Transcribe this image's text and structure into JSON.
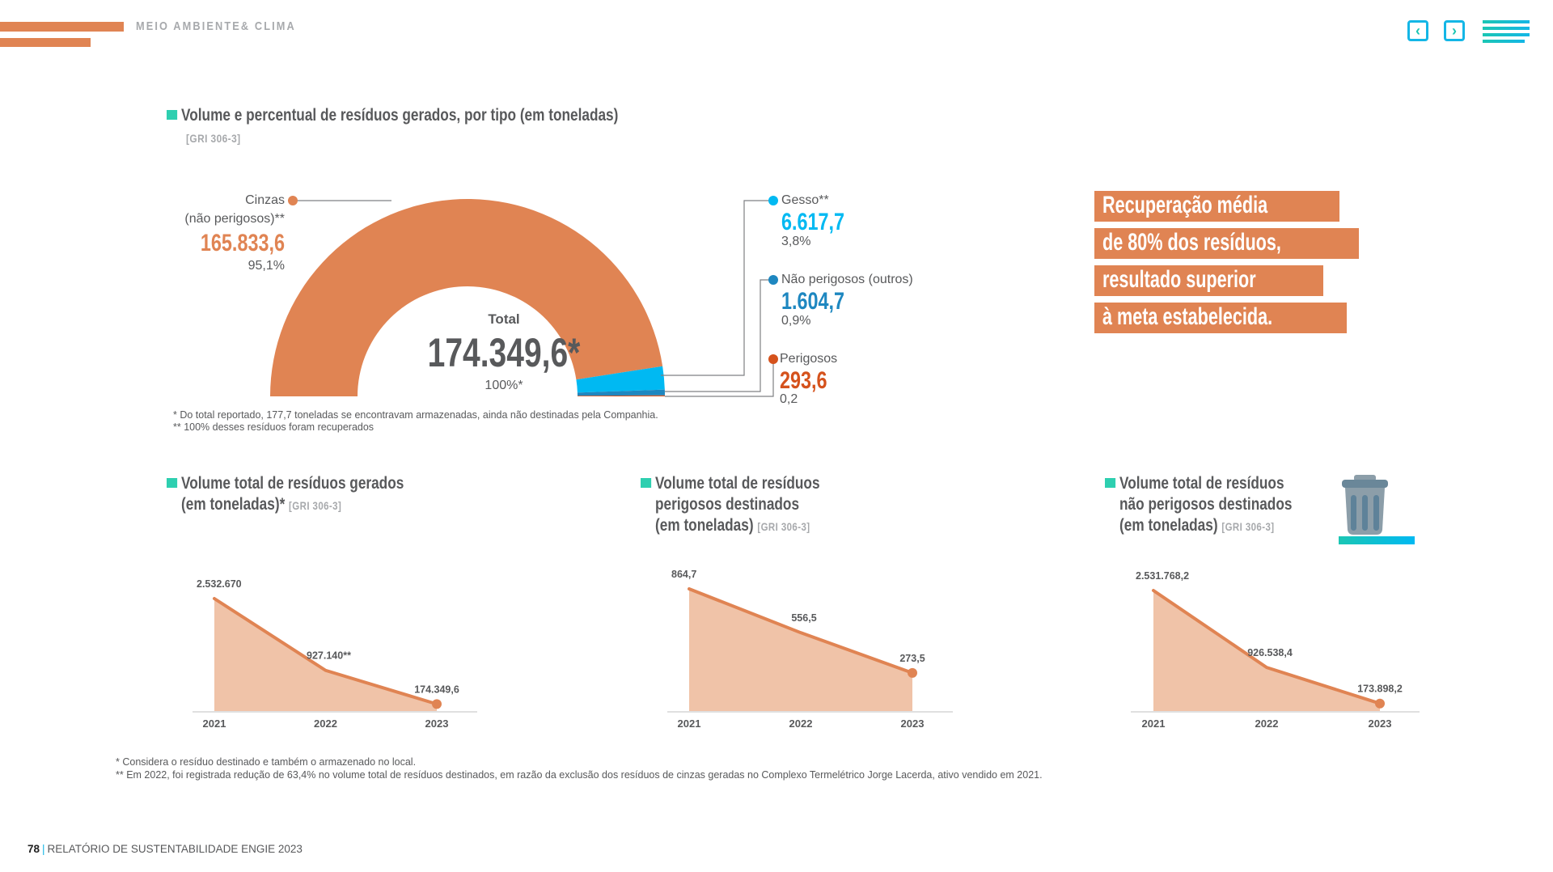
{
  "header": {
    "section_title": "MEIO AMBIENTE& CLIMA",
    "nav": {
      "prev_icon": "chevron-left-icon",
      "next_icon": "chevron-right-icon",
      "menu_icon": "menu-icon"
    }
  },
  "colors": {
    "orange": "#e08453",
    "orange_fill": "#f0c3a8",
    "sky_blue": "#00b9f2",
    "blue": "#1e87c0",
    "red_orange": "#d5521c",
    "teal": "#2ecfb0",
    "gray_text": "#58595b"
  },
  "donut": {
    "title": "Volume e percentual de resíduos gerados, por tipo (em toneladas)",
    "gri": "[GRI  306-3]",
    "center_label": "Total",
    "center_value": "174.349,6*",
    "center_pct": "100%*",
    "notes": [
      "* Do total reportado, 177,7 toneladas se encontravam armazenadas, ainda não destinadas pela Companhia.",
      "** 100% desses resíduos foram recuperados"
    ],
    "labels": {
      "cinzas_line1": "Cinzas",
      "cinzas_line2": "(não perigosos)**",
      "cinzas_value": "165.833,6",
      "cinzas_pct": "95,1%",
      "gesso_name": "Gesso**",
      "gesso_value": "6.617,7",
      "gesso_pct": "3,8%",
      "np_name": "Não perigosos (outros)",
      "np_value": "1.604,7",
      "np_pct": "0,9%",
      "per_name": "Perigosos",
      "per_value": "293,6",
      "per_pct": "0,2"
    }
  },
  "callout": {
    "lines": [
      "Recuperação média",
      "de 80% dos resíduos,",
      "resultado superior",
      "à meta estabelecida."
    ]
  },
  "charts_titles": {
    "c1": {
      "line1": "Volume total de resíduos gerados",
      "line2": "(em toneladas)*",
      "gri": "[GRI  306-3]"
    },
    "c2": {
      "line1": "Volume total de resíduos",
      "line2": "perigosos destinados",
      "line3": "(em toneladas)",
      "gri": "[GRI  306-3]"
    },
    "c3": {
      "line1": "Volume total de resíduos",
      "line2": "não perigosos destinados",
      "line3": "(em toneladas)",
      "gri": "[GRI  306-3]"
    }
  },
  "chart_data": [
    {
      "type": "pie",
      "subtype": "half-donut",
      "title": "Volume e percentual de resíduos gerados, por tipo (em toneladas)",
      "categories": [
        "Cinzas (não perigosos)",
        "Gesso",
        "Não perigosos (outros)",
        "Perigosos"
      ],
      "values": [
        165833.6,
        6617.7,
        1604.7,
        293.6
      ],
      "percentages": [
        95.1,
        3.8,
        0.9,
        0.2
      ],
      "colors": [
        "#e08453",
        "#00b9f2",
        "#1e87c0",
        "#d5521c"
      ],
      "total": 174349.6
    },
    {
      "type": "area",
      "title": "Volume total de resíduos gerados (em toneladas)*",
      "categories": [
        "2021",
        "2022",
        "2023"
      ],
      "values": [
        2532670,
        927140,
        174349.6
      ],
      "value_labels": [
        "2.532.670",
        "927.140**",
        "174.349,6"
      ],
      "ylim": [
        0,
        2700000
      ]
    },
    {
      "type": "area",
      "title": "Volume total de resíduos perigosos destinados (em toneladas)",
      "categories": [
        "2021",
        "2022",
        "2023"
      ],
      "values": [
        864.7,
        556.5,
        273.5
      ],
      "value_labels": [
        "864,7",
        "556,5",
        "273,5"
      ],
      "ylim": [
        0,
        920
      ]
    },
    {
      "type": "area",
      "title": "Volume total de resíduos não perigosos destinados (em toneladas)",
      "categories": [
        "2021",
        "2022",
        "2023"
      ],
      "values": [
        2531768.2,
        926538.4,
        173898.2
      ],
      "value_labels": [
        "2.531.768,2",
        "926.538,4",
        "173.898,2"
      ],
      "ylim": [
        0,
        2750000
      ]
    }
  ],
  "footnotes": [
    "* Considera o resíduo destinado e também o armazenado no local.",
    "** Em 2022, foi registrada redução de 63,4% no volume total de resíduos destinados, em razão da exclusão dos resíduos de cinzas geradas no Complexo Termelétrico Jorge Lacerda, ativo vendido em 2021."
  ],
  "footer": {
    "page": "78",
    "title": "RELATÓRIO DE SUSTENTABILIDADE ENGIE 2023"
  }
}
